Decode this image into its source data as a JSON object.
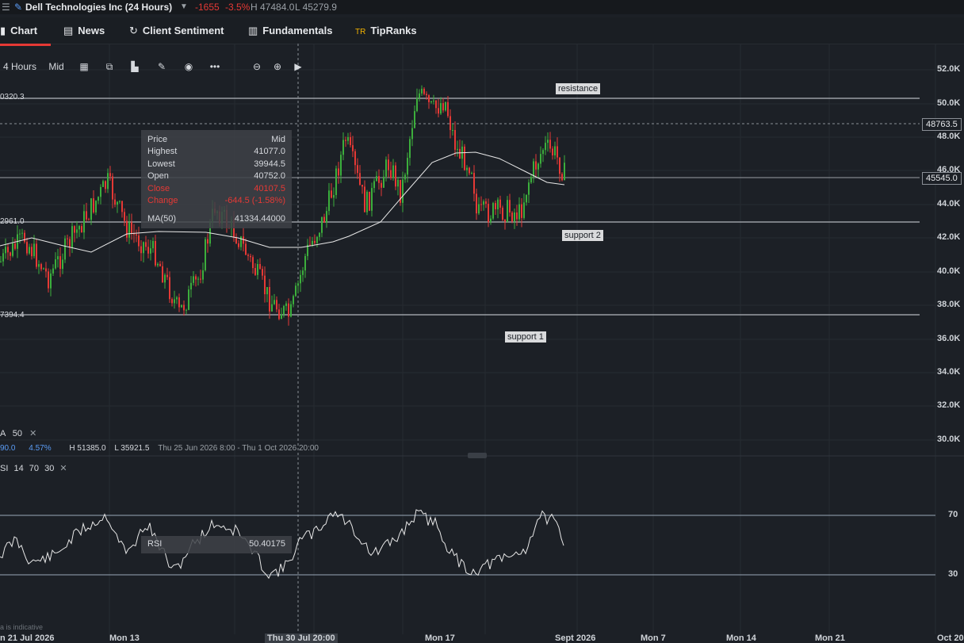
{
  "header": {
    "instrument": "Dell Technologies Inc (24 Hours)",
    "change": "-1655",
    "change_pct": "-3.5%",
    "high": "H 47484.0",
    "low": "L 45279.9"
  },
  "tabs": [
    {
      "label": "Chart",
      "icon": "chart-icon"
    },
    {
      "label": "News",
      "icon": "news-icon"
    },
    {
      "label": "Client Sentiment",
      "icon": "sentiment-icon"
    },
    {
      "label": "Fundamentals",
      "icon": "bars-icon"
    },
    {
      "label": "TipRanks",
      "icon": "tipranks-icon"
    }
  ],
  "toolbar": {
    "interval": "4 Hours",
    "price_type": "Mid"
  },
  "price_axis": [
    "52.0K",
    "50.0K",
    "48.0K",
    "46.0K",
    "44.0K",
    "42.0K",
    "40.0K",
    "38.0K",
    "36.0K",
    "34.0K",
    "32.0K",
    "30.0K"
  ],
  "rsi_axis": [
    "70",
    "30"
  ],
  "time_axis": [
    "n 21 Jul 2026",
    "Mon 13",
    "Thu 30 Jul 20:00",
    "Mon 17",
    "Sept 2026",
    "Mon 7",
    "Mon 14",
    "Mon 21",
    "Oct 20"
  ],
  "lines": {
    "resistance": "resistance",
    "support2": "support 2",
    "support1": "support 1",
    "left_top": "0320.3",
    "left_mid": "2961.0",
    "left_low": "7394.4"
  },
  "price_tags": {
    "crosshair": "48763.5",
    "last": "45545.0"
  },
  "tooltip": {
    "price_label": "Price",
    "price_val": "Mid",
    "high_label": "Highest",
    "high_val": "41077.0",
    "low_label": "Lowest",
    "low_val": "39944.5",
    "open_label": "Open",
    "open_val": "40752.0",
    "close_label": "Close",
    "close_val": "40107.5",
    "change_label": "Change",
    "change_val": "-644.5 (-1.58%)",
    "ma_label": "MA(50)",
    "ma_val": "41334.44000"
  },
  "ma_indicator": {
    "name": "A",
    "period": "50"
  },
  "stats": {
    "v1": "90.0",
    "v2": "4.57%",
    "h": "H 51385.0",
    "l": "L 35921.5",
    "range": "Thu 25 Jun 2026 8:00 - Thu 1 Oct 2026 20:00"
  },
  "rsi_indicator": {
    "name": "SI",
    "p1": "14",
    "p2": "70",
    "p3": "30"
  },
  "rsi_tip": {
    "label": "RSI",
    "value": "50.40175"
  },
  "footer_note": "a is indicative",
  "colors": {
    "up": "#3cae3c",
    "down": "#e53935",
    "background": "#1c2026",
    "line": "#e8e8e8"
  }
}
